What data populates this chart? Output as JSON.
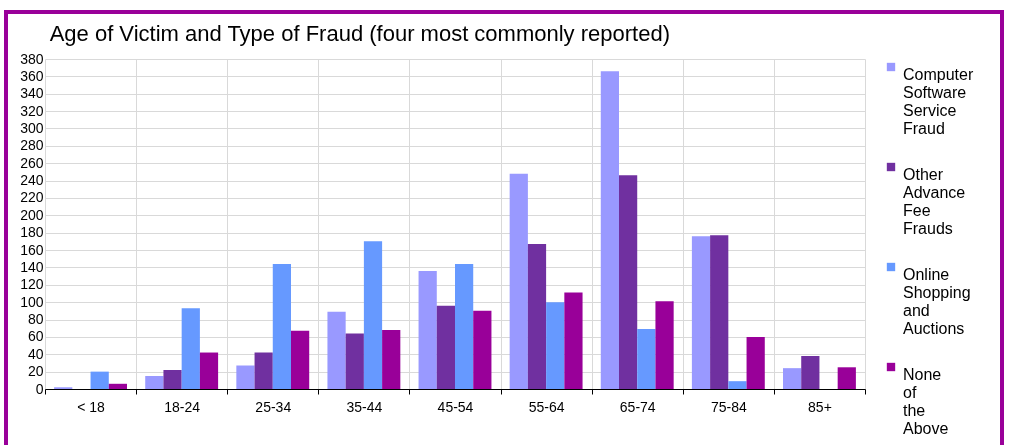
{
  "chart_data": {
    "type": "bar",
    "title": "Age of Victim and Type of Fraud (four most commonly reported)",
    "categories": [
      "< 18",
      "18-24",
      "25-34",
      "35-44",
      "45-54",
      "55-64",
      "65-74",
      "75-84",
      "85+"
    ],
    "series": [
      {
        "name": "Computer Software Service Fraud",
        "color": "#9999ff",
        "values": [
          2,
          15,
          27,
          89,
          136,
          248,
          366,
          176,
          24
        ]
      },
      {
        "name": "Other Advance Fee Frauds",
        "color": "#7030a0",
        "values": [
          0,
          22,
          42,
          64,
          96,
          167,
          246,
          177,
          38
        ]
      },
      {
        "name": "Online Shopping and Auctions",
        "color": "#6699ff",
        "values": [
          20,
          93,
          144,
          170,
          144,
          100,
          69,
          9,
          0
        ]
      },
      {
        "name": "None of the Above",
        "color": "#990099",
        "values": [
          6,
          42,
          67,
          68,
          90,
          111,
          101,
          60,
          25
        ]
      }
    ],
    "ylim": [
      0,
      380
    ],
    "yticks": [
      0,
      20,
      40,
      60,
      80,
      100,
      120,
      140,
      160,
      180,
      200,
      220,
      240,
      260,
      280,
      300,
      320,
      340,
      360,
      380
    ],
    "grid": true,
    "legend": "right"
  }
}
